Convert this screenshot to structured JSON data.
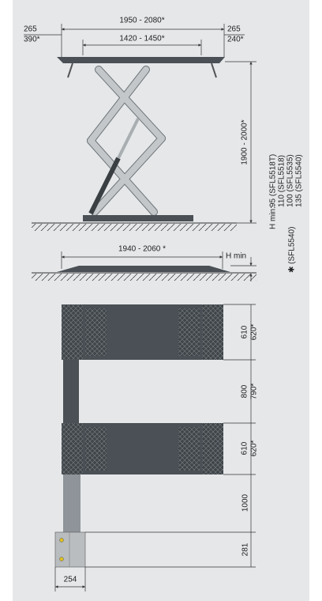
{
  "side_view": {
    "overall_width": "1950 - 2080*",
    "left_offset": [
      "265",
      "390*"
    ],
    "platform_width": "1420 - 1450*",
    "right_offset": [
      "265",
      "240*"
    ],
    "height": "1900 - 2000*",
    "h_min_label": "H min:",
    "h_min_values": [
      "95 (SFL5518T)",
      "110 (SFL5518)",
      "100 (SFL5535)",
      "135 (SFL5540)"
    ]
  },
  "ramp_view": {
    "length": "1940 - 2060 *",
    "h_min": "H min",
    "note": "✱ (SFL5540)"
  },
  "plan_view": {
    "platform_1": [
      "610",
      "620*"
    ],
    "gap": [
      "800",
      "790*"
    ],
    "platform_2": [
      "610",
      "620*"
    ],
    "column": "1000",
    "base": "281",
    "base_width": "254"
  }
}
